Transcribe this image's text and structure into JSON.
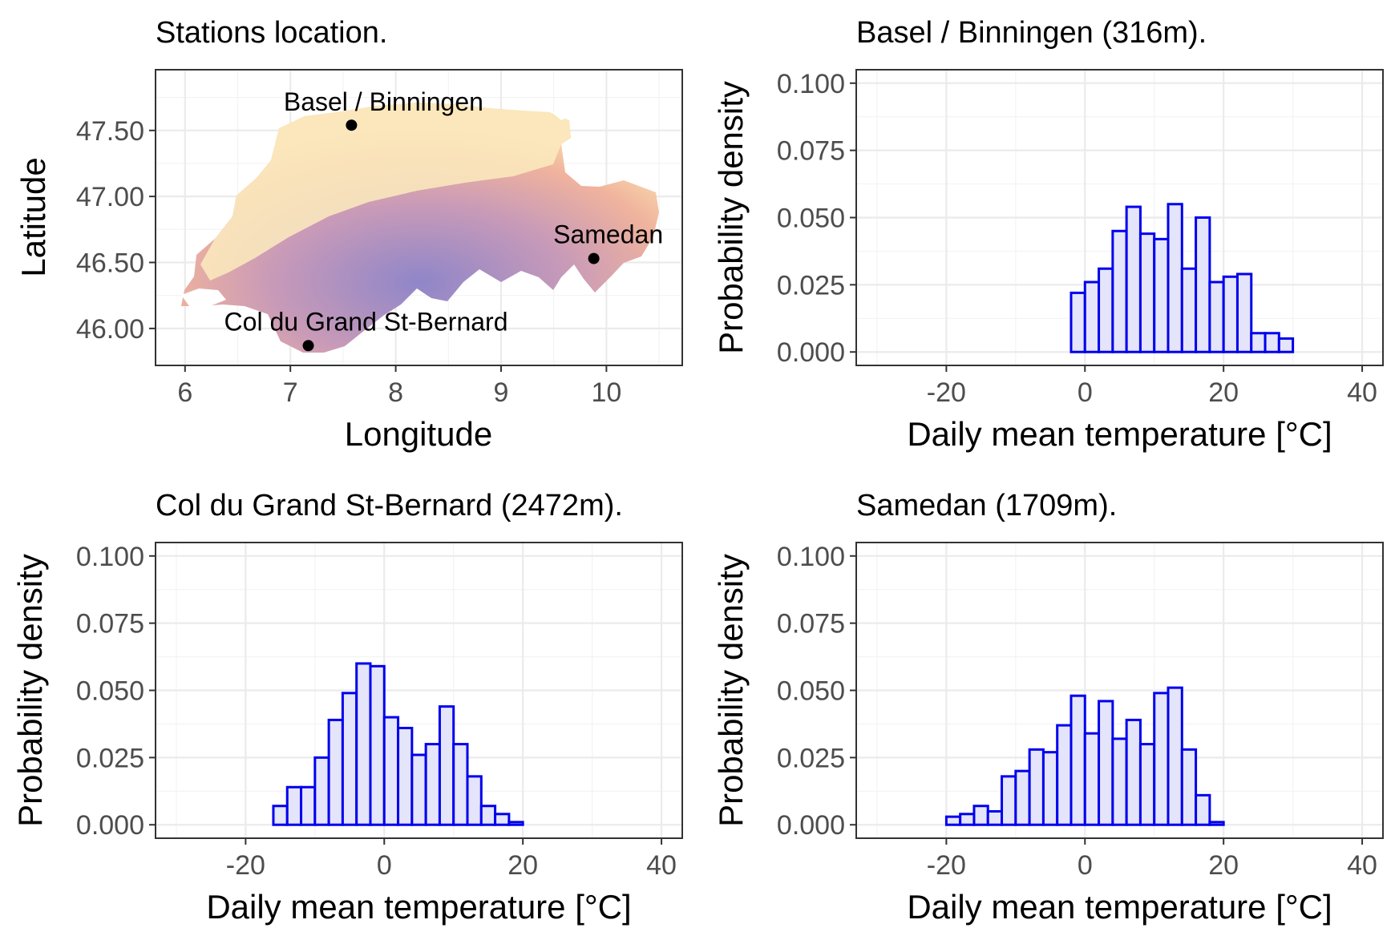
{
  "figure": {
    "map_panel": {
      "title": "Stations location.",
      "xlabel": "Longitude",
      "ylabel": "Latitude",
      "xticks": [
        6,
        7,
        8,
        9,
        10
      ],
      "yticks": [
        "46.00",
        "46.50",
        "47.00",
        "47.50"
      ],
      "stations": [
        {
          "name": "Basel / Binningen",
          "lon": 7.58,
          "lat": 47.54
        },
        {
          "name": "Samedan",
          "lon": 9.88,
          "lat": 46.53
        },
        {
          "name": "Col du Grand St-Bernard",
          "lon": 7.17,
          "lat": 45.87
        }
      ],
      "elevation_colors": {
        "low": "#fdf2c8",
        "mid": "#f0b39d",
        "high": "#8f86c9"
      }
    }
  },
  "chart_data": [
    {
      "type": "bar",
      "title": "Basel / Binningen (316m).",
      "xlabel": "Daily mean temperature [°C]",
      "ylabel": "Probability density",
      "xlim": [
        -33,
        43
      ],
      "ylim": [
        -0.005,
        0.105
      ],
      "xticks": [
        -20,
        0,
        20,
        40
      ],
      "yticks": [
        "0.000",
        "0.025",
        "0.050",
        "0.075",
        "0.100"
      ],
      "bin_start": -2,
      "bin_width": 2,
      "values": [
        0.022,
        0.026,
        0.031,
        0.045,
        0.054,
        0.044,
        0.042,
        0.055,
        0.031,
        0.05,
        0.026,
        0.028,
        0.029,
        0.007,
        0.007,
        0.005
      ],
      "fill": "#e4e4fb",
      "stroke": "#0000ee"
    },
    {
      "type": "bar",
      "title": "Col du Grand St-Bernard (2472m).",
      "xlabel": "Daily mean temperature [°C]",
      "ylabel": "Probability density",
      "xlim": [
        -33,
        43
      ],
      "ylim": [
        -0.005,
        0.105
      ],
      "xticks": [
        -20,
        0,
        20,
        40
      ],
      "yticks": [
        "0.000",
        "0.025",
        "0.050",
        "0.075",
        "0.100"
      ],
      "bin_start": -16,
      "bin_width": 2,
      "values": [
        0.007,
        0.014,
        0.014,
        0.025,
        0.039,
        0.049,
        0.06,
        0.059,
        0.04,
        0.036,
        0.026,
        0.03,
        0.044,
        0.03,
        0.018,
        0.007,
        0.004,
        0.001
      ],
      "fill": "#e4e4fb",
      "stroke": "#0000ee"
    },
    {
      "type": "bar",
      "title": "Samedan (1709m).",
      "xlabel": "Daily mean temperature [°C]",
      "ylabel": "Probability density",
      "xlim": [
        -33,
        43
      ],
      "ylim": [
        -0.005,
        0.105
      ],
      "xticks": [
        -20,
        0,
        20,
        40
      ],
      "yticks": [
        "0.000",
        "0.025",
        "0.050",
        "0.075",
        "0.100"
      ],
      "bin_start": -20,
      "bin_width": 2,
      "values": [
        0.003,
        0.004,
        0.007,
        0.005,
        0.018,
        0.02,
        0.028,
        0.027,
        0.037,
        0.048,
        0.034,
        0.046,
        0.032,
        0.039,
        0.03,
        0.049,
        0.051,
        0.028,
        0.011,
        0.001
      ],
      "fill": "#e4e4fb",
      "stroke": "#0000ee"
    }
  ]
}
